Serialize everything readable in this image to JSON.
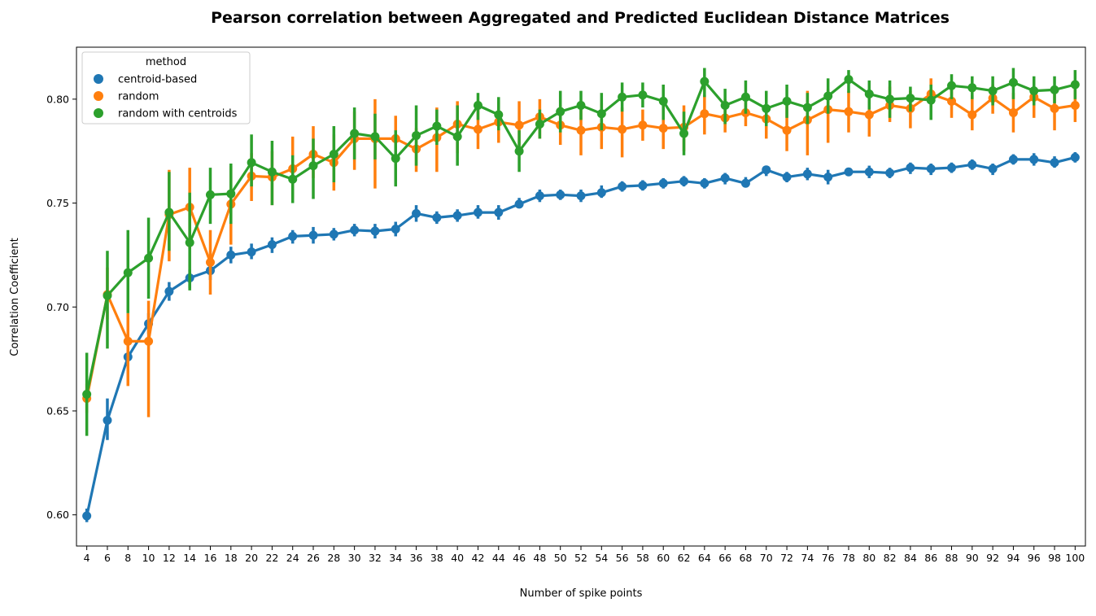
{
  "chart_data": {
    "type": "line",
    "title": "Pearson correlation between Aggregated and Predicted Euclidean Distance Matrices",
    "xlabel": "Number of spike points",
    "ylabel": "Correlation Coefficient",
    "ylim": [
      0.585,
      0.825
    ],
    "yticks": [
      "0.60",
      "0.65",
      "0.70",
      "0.75",
      "0.80"
    ],
    "x": [
      4,
      6,
      8,
      10,
      12,
      14,
      16,
      18,
      20,
      22,
      24,
      26,
      28,
      30,
      32,
      34,
      36,
      38,
      40,
      42,
      44,
      46,
      48,
      50,
      52,
      54,
      56,
      58,
      60,
      62,
      64,
      66,
      68,
      70,
      72,
      74,
      76,
      78,
      80,
      82,
      84,
      86,
      88,
      90,
      92,
      94,
      96,
      98,
      100
    ],
    "legend": {
      "title": "method",
      "placement": "upper-left"
    },
    "series": [
      {
        "name": "centroid-based",
        "color": "#1f77b4",
        "values": [
          0.5995,
          0.6455,
          0.676,
          0.692,
          0.7075,
          0.714,
          0.7175,
          0.725,
          0.7265,
          0.73,
          0.734,
          0.7345,
          0.735,
          0.737,
          0.7365,
          0.7375,
          0.745,
          0.743,
          0.744,
          0.7455,
          0.7455,
          0.7495,
          0.7535,
          0.754,
          0.7535,
          0.755,
          0.758,
          0.7585,
          0.7595,
          0.7605,
          0.7595,
          0.762,
          0.7595,
          0.766,
          0.7625,
          0.764,
          0.7625,
          0.765,
          0.765,
          0.7645,
          0.767,
          0.7665,
          0.767,
          0.7685,
          0.7665,
          0.771,
          0.771,
          0.7695,
          0.772
        ],
        "ci_low": [
          0.5965,
          0.636,
          0.671,
          0.687,
          0.703,
          0.709,
          0.713,
          0.721,
          0.723,
          0.726,
          0.7305,
          0.7305,
          0.732,
          0.734,
          0.733,
          0.734,
          0.741,
          0.74,
          0.741,
          0.7425,
          0.742,
          0.7475,
          0.7505,
          0.7515,
          0.7505,
          0.7525,
          0.7555,
          0.756,
          0.757,
          0.758,
          0.757,
          0.759,
          0.7575,
          0.763,
          0.76,
          0.761,
          0.759,
          0.763,
          0.762,
          0.762,
          0.764,
          0.7635,
          0.7645,
          0.766,
          0.7635,
          0.7685,
          0.768,
          0.767,
          0.7695
        ],
        "ci_high": [
          0.603,
          0.656,
          0.681,
          0.697,
          0.712,
          0.718,
          0.722,
          0.729,
          0.7305,
          0.7335,
          0.737,
          0.7385,
          0.738,
          0.74,
          0.74,
          0.741,
          0.749,
          0.746,
          0.747,
          0.749,
          0.749,
          0.7525,
          0.7565,
          0.7565,
          0.7565,
          0.7585,
          0.7605,
          0.761,
          0.762,
          0.763,
          0.762,
          0.7645,
          0.7625,
          0.768,
          0.765,
          0.767,
          0.766,
          0.767,
          0.768,
          0.767,
          0.7695,
          0.769,
          0.7695,
          0.771,
          0.769,
          0.7735,
          0.774,
          0.7725,
          0.7745
        ]
      },
      {
        "name": "random",
        "color": "#ff7f0e",
        "values": [
          0.656,
          0.706,
          0.6835,
          0.6835,
          0.7445,
          0.748,
          0.7215,
          0.7495,
          0.763,
          0.7625,
          0.7665,
          0.7735,
          0.7695,
          0.781,
          0.781,
          0.781,
          0.776,
          0.7815,
          0.788,
          0.7855,
          0.789,
          0.7875,
          0.7915,
          0.7875,
          0.785,
          0.7865,
          0.7855,
          0.7875,
          0.786,
          0.7865,
          0.793,
          0.791,
          0.7935,
          0.7905,
          0.785,
          0.79,
          0.795,
          0.794,
          0.7925,
          0.797,
          0.7955,
          0.8025,
          0.799,
          0.7925,
          0.8005,
          0.7935,
          0.801,
          0.7955,
          0.797
        ],
        "ci_low": [
          0.649,
          0.694,
          0.662,
          0.647,
          0.722,
          0.728,
          0.706,
          0.73,
          0.751,
          0.749,
          0.752,
          0.762,
          0.756,
          0.766,
          0.757,
          0.767,
          0.765,
          0.765,
          0.774,
          0.776,
          0.779,
          0.776,
          0.781,
          0.778,
          0.773,
          0.776,
          0.772,
          0.78,
          0.776,
          0.775,
          0.783,
          0.784,
          0.787,
          0.781,
          0.775,
          0.773,
          0.779,
          0.784,
          0.782,
          0.789,
          0.786,
          0.796,
          0.791,
          0.785,
          0.793,
          0.784,
          0.791,
          0.785,
          0.789
        ],
        "ci_high": [
          0.663,
          0.719,
          0.697,
          0.703,
          0.766,
          0.767,
          0.737,
          0.768,
          0.774,
          0.775,
          0.782,
          0.787,
          0.783,
          0.794,
          0.8,
          0.792,
          0.786,
          0.796,
          0.799,
          0.797,
          0.799,
          0.799,
          0.8,
          0.797,
          0.798,
          0.798,
          0.796,
          0.795,
          0.797,
          0.797,
          0.802,
          0.8,
          0.801,
          0.801,
          0.797,
          0.804,
          0.805,
          0.804,
          0.803,
          0.806,
          0.804,
          0.81,
          0.806,
          0.802,
          0.807,
          0.803,
          0.809,
          0.805,
          0.805
        ]
      },
      {
        "name": "random with centroids",
        "color": "#2ca02c",
        "values": [
          0.658,
          0.7055,
          0.7165,
          0.7235,
          0.7455,
          0.731,
          0.754,
          0.7545,
          0.7695,
          0.765,
          0.7615,
          0.768,
          0.7735,
          0.7835,
          0.782,
          0.7715,
          0.7825,
          0.787,
          0.782,
          0.797,
          0.7925,
          0.775,
          0.788,
          0.794,
          0.797,
          0.793,
          0.801,
          0.802,
          0.799,
          0.7835,
          0.8085,
          0.797,
          0.801,
          0.7955,
          0.799,
          0.796,
          0.8015,
          0.8095,
          0.8025,
          0.8,
          0.8005,
          0.7995,
          0.8065,
          0.8055,
          0.804,
          0.808,
          0.804,
          0.8045,
          0.807
        ],
        "ci_low": [
          0.638,
          0.68,
          0.697,
          0.704,
          0.727,
          0.708,
          0.74,
          0.74,
          0.758,
          0.749,
          0.75,
          0.752,
          0.76,
          0.771,
          0.771,
          0.758,
          0.768,
          0.778,
          0.768,
          0.79,
          0.785,
          0.765,
          0.781,
          0.784,
          0.79,
          0.785,
          0.794,
          0.796,
          0.79,
          0.773,
          0.801,
          0.788,
          0.793,
          0.787,
          0.791,
          0.788,
          0.793,
          0.803,
          0.795,
          0.791,
          0.794,
          0.79,
          0.8,
          0.8,
          0.797,
          0.8,
          0.797,
          0.798,
          0.8
        ],
        "ci_high": [
          0.678,
          0.727,
          0.737,
          0.743,
          0.765,
          0.755,
          0.767,
          0.769,
          0.783,
          0.78,
          0.773,
          0.781,
          0.787,
          0.796,
          0.793,
          0.785,
          0.797,
          0.795,
          0.797,
          0.803,
          0.801,
          0.785,
          0.795,
          0.804,
          0.804,
          0.803,
          0.808,
          0.808,
          0.807,
          0.794,
          0.815,
          0.805,
          0.809,
          0.804,
          0.807,
          0.803,
          0.81,
          0.814,
          0.809,
          0.809,
          0.806,
          0.807,
          0.812,
          0.811,
          0.811,
          0.815,
          0.811,
          0.811,
          0.814
        ]
      }
    ]
  }
}
